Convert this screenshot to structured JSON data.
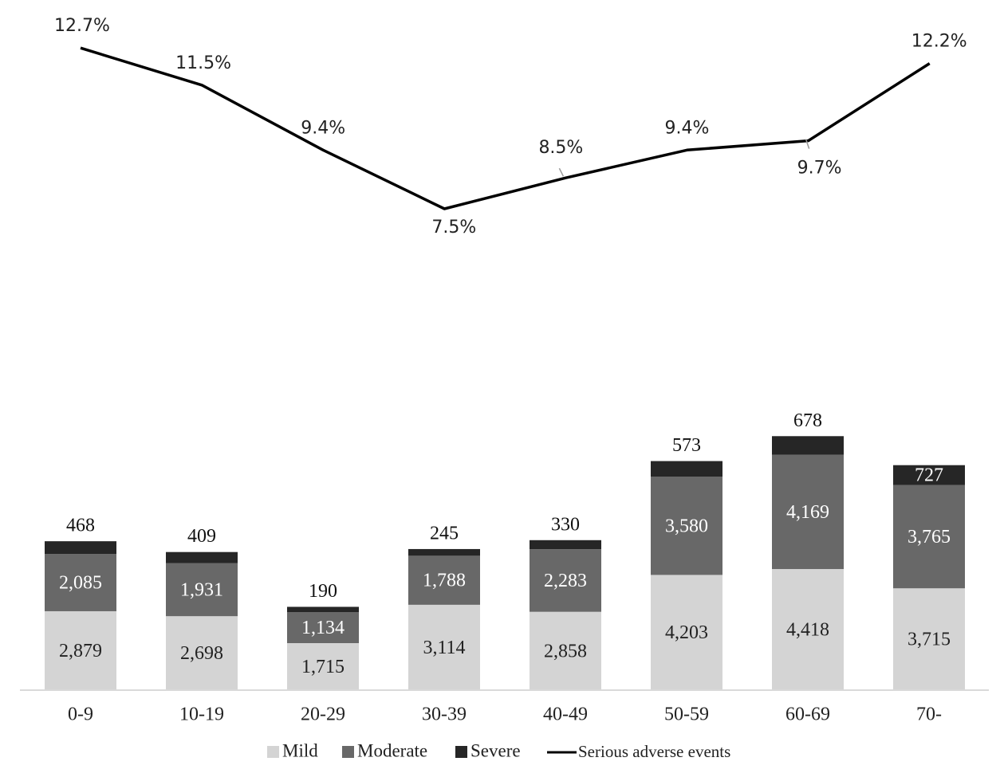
{
  "chart_data": {
    "type": "bar",
    "stacked": true,
    "categories": [
      "0-9",
      "10-19",
      "20-29",
      "30-39",
      "40-49",
      "50-59",
      "60-69",
      "70-"
    ],
    "series": [
      {
        "name": "Mild",
        "color": "#d4d4d4",
        "values": [
          2879,
          2698,
          1715,
          3114,
          2858,
          4203,
          4418,
          3715
        ],
        "labels": [
          "2,879",
          "2,698",
          "1,715",
          "3,114",
          "2,858",
          "4,203",
          "4,418",
          "3,715"
        ]
      },
      {
        "name": "Moderate",
        "color": "#686868",
        "values": [
          2085,
          1931,
          1134,
          1788,
          2283,
          3580,
          4169,
          3765
        ],
        "labels": [
          "2,085",
          "1,931",
          "1,134",
          "1,788",
          "2,283",
          "3,580",
          "4,169",
          "3,765"
        ]
      },
      {
        "name": "Severe",
        "color": "#262626",
        "values": [
          468,
          409,
          190,
          245,
          330,
          573,
          678,
          727
        ],
        "labels": [
          "468",
          "409",
          "190",
          "245",
          "330",
          "573",
          "678",
          "727"
        ]
      }
    ],
    "line_series": {
      "name": "Serious adverse events",
      "color": "#000000",
      "values": [
        12.7,
        11.5,
        9.4,
        7.5,
        8.5,
        9.4,
        9.7,
        12.2
      ],
      "labels": [
        "12.7%",
        "11.5%",
        "9.4%",
        "7.5%",
        "8.5%",
        "9.4%",
        "9.7%",
        "12.2%"
      ]
    },
    "legend_position": "bottom",
    "grid": false
  }
}
